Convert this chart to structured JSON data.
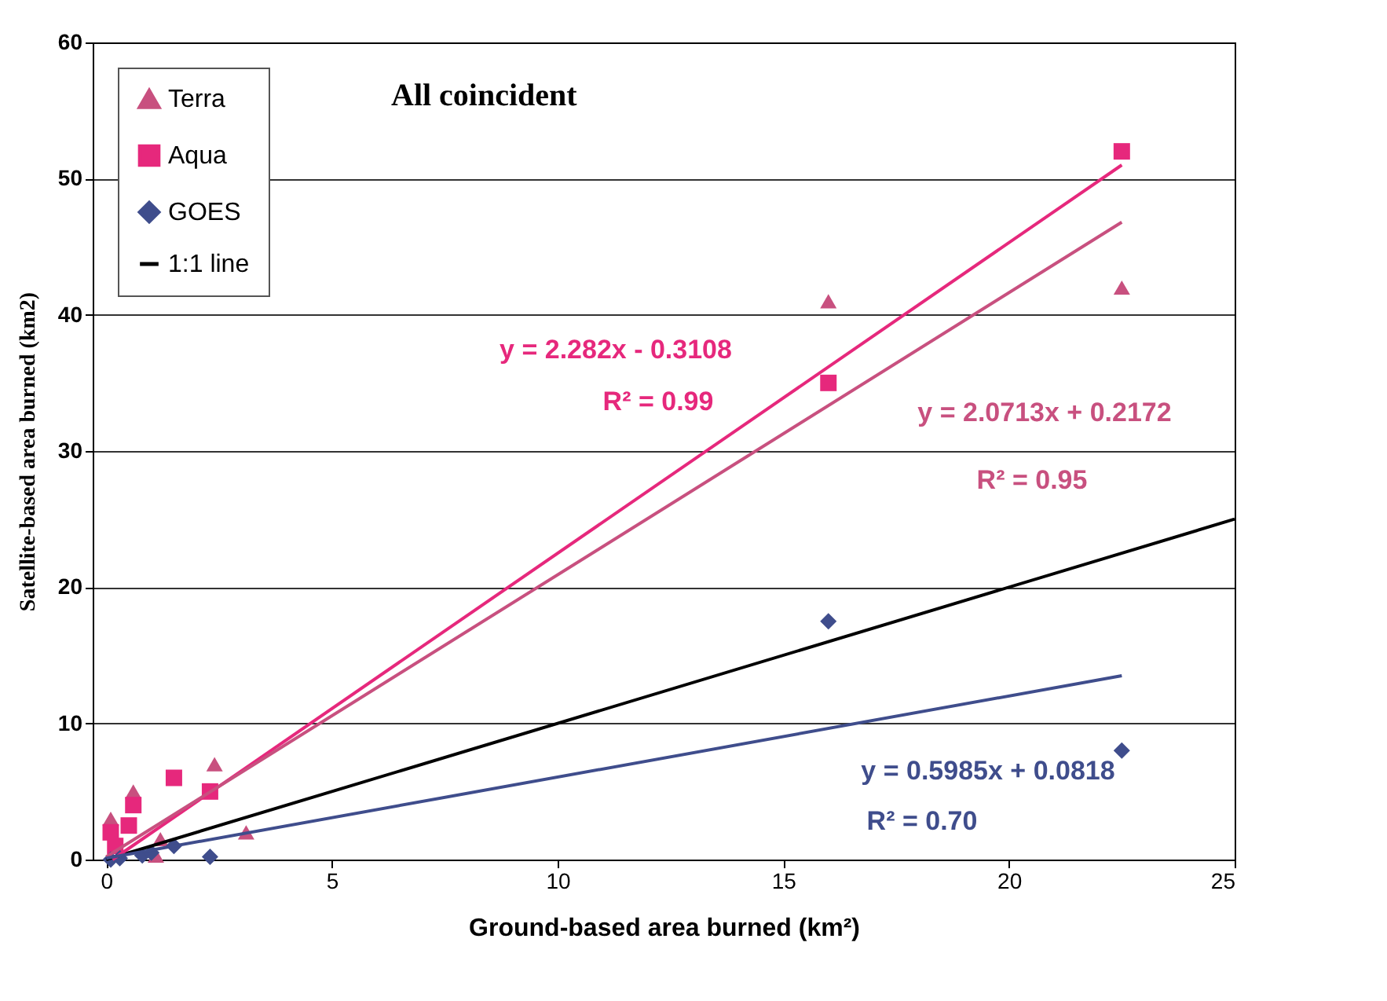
{
  "chart_data": {
    "type": "scatter",
    "title": "All coincident",
    "xlabel": "Ground-based area burned (km²)",
    "ylabel": "Satellite-based area burned (km2)",
    "xlim": [
      -0.3,
      25
    ],
    "ylim": [
      0,
      60
    ],
    "xticks": [
      0,
      5,
      10,
      15,
      20,
      25
    ],
    "yticks": [
      0,
      10,
      20,
      30,
      40,
      50,
      60
    ],
    "grid": "y",
    "legend": "top left",
    "series": [
      {
        "name": "Terra",
        "color": "#c8507f",
        "marker": "triangle",
        "x": [
          16,
          22.5,
          2.4,
          3.1,
          0.6,
          1.1,
          1.2,
          0.1
        ],
        "values": [
          41,
          42,
          7,
          2,
          5,
          0.3,
          1.5,
          3
        ]
      },
      {
        "name": "Aqua",
        "color": "#e6287c",
        "marker": "square",
        "x": [
          22.5,
          16,
          1.5,
          2.3,
          0.6,
          0.1,
          0.5,
          0.2
        ],
        "values": [
          52,
          35,
          6,
          5,
          4,
          2,
          2.5,
          1
        ]
      },
      {
        "name": "GOES",
        "color": "#3f4d8c",
        "marker": "diamond",
        "x": [
          16,
          22.5,
          2.3,
          1.5,
          0.1,
          0.8,
          1,
          0.3
        ],
        "values": [
          17.5,
          8,
          0.2,
          1,
          0,
          0.3,
          0.5,
          0.1
        ]
      },
      {
        "name": "1:1 line",
        "type": "line",
        "color": "#000000",
        "marker": "none",
        "x": [
          0,
          25
        ],
        "values": [
          0,
          25
        ]
      },
      {
        "type": "line",
        "color": "#e6287c",
        "marker": "none",
        "x": [
          0.14,
          22.5
        ],
        "values": [
          0,
          51
        ]
      },
      {
        "type": "line",
        "color": "#c8507f",
        "marker": "none",
        "x": [
          0,
          22.5
        ],
        "values": [
          0.2,
          46.8
        ]
      },
      {
        "type": "line",
        "color": "#3f4d8c",
        "marker": "none",
        "x": [
          0,
          22.5
        ],
        "values": [
          0.1,
          13.5
        ]
      }
    ],
    "annotations": [
      "y = 2.282x - 0.3108",
      "R² = 0.99",
      "y = 2.0713x + 0.2172",
      "R² = 0.95",
      "y = 0.5985x + 0.0818",
      "R² = 0.70"
    ]
  }
}
